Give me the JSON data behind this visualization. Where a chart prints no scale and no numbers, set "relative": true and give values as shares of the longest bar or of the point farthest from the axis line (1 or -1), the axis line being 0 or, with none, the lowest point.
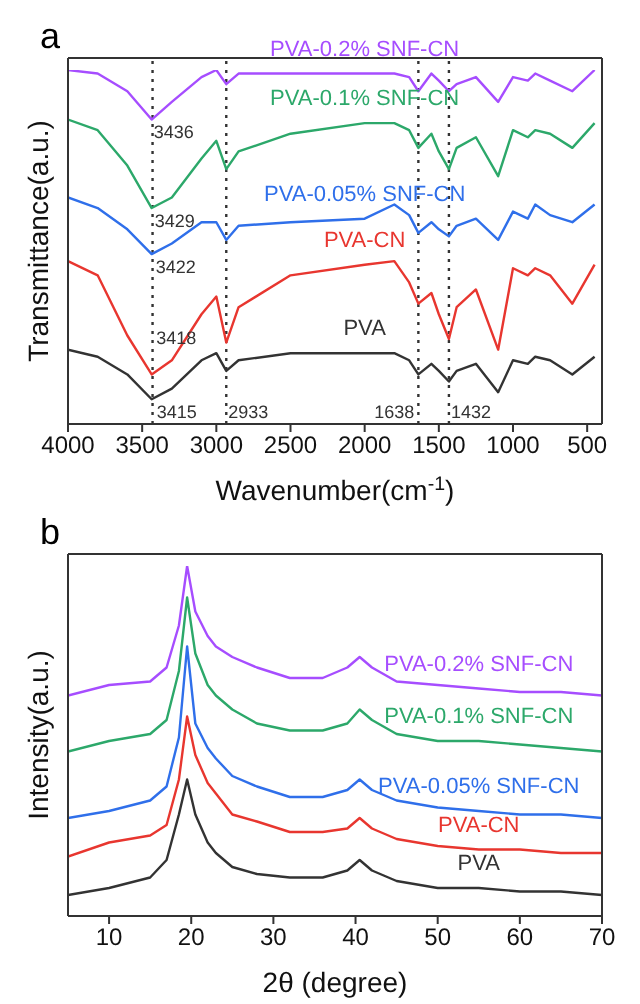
{
  "chart_data": [
    {
      "type": "line",
      "title": "a",
      "xlabel": "Wavenumber(cm$^{-1}$)",
      "ylabel": "Transmittance(a.u.)",
      "relative": true,
      "legend": false,
      "grid": false,
      "xlim": [
        4000,
        400
      ],
      "xticks": [
        4000,
        3500,
        3000,
        2500,
        2000,
        1500,
        1000,
        500
      ],
      "x": [
        4000,
        3800,
        3600,
        3436,
        3300,
        3100,
        3000,
        2933,
        2850,
        2500,
        2000,
        1800,
        1700,
        1638,
        1550,
        1500,
        1432,
        1380,
        1250,
        1100,
        1000,
        900,
        850,
        750,
        600,
        450
      ],
      "series": [
        {
          "name": "PVA-0.2% SNF-CN",
          "color": "#a64dff",
          "values": [
            1.0,
            0.99,
            0.94,
            0.86,
            0.91,
            0.98,
            1.0,
            0.96,
            0.99,
            0.99,
            0.99,
            0.99,
            0.98,
            0.94,
            0.99,
            0.97,
            0.94,
            0.96,
            0.98,
            0.91,
            0.98,
            0.97,
            0.99,
            0.97,
            0.94,
            1.0
          ]
        },
        {
          "name": "PVA-0.1% SNF-CN",
          "color": "#2ca86a",
          "values": [
            0.86,
            0.83,
            0.73,
            0.61,
            0.64,
            0.75,
            0.8,
            0.72,
            0.77,
            0.82,
            0.85,
            0.85,
            0.83,
            0.78,
            0.82,
            0.77,
            0.72,
            0.78,
            0.81,
            0.7,
            0.83,
            0.81,
            0.83,
            0.82,
            0.78,
            0.85
          ]
        },
        {
          "name": "PVA-0.05% SNF-CN",
          "color": "#2f6fea",
          "values": [
            0.64,
            0.61,
            0.55,
            0.48,
            0.51,
            0.57,
            0.57,
            0.52,
            0.56,
            0.57,
            0.58,
            0.62,
            0.59,
            0.54,
            0.57,
            0.55,
            0.53,
            0.56,
            0.58,
            0.52,
            0.6,
            0.58,
            0.62,
            0.59,
            0.57,
            0.62
          ]
        },
        {
          "name": "PVA-CN",
          "color": "#e8362f",
          "values": [
            0.46,
            0.42,
            0.25,
            0.14,
            0.18,
            0.31,
            0.36,
            0.23,
            0.33,
            0.42,
            0.45,
            0.46,
            0.4,
            0.34,
            0.37,
            0.31,
            0.24,
            0.33,
            0.38,
            0.21,
            0.44,
            0.42,
            0.44,
            0.42,
            0.34,
            0.45
          ]
        },
        {
          "name": "PVA",
          "color": "#333333",
          "values": [
            0.21,
            0.19,
            0.14,
            0.07,
            0.1,
            0.18,
            0.2,
            0.15,
            0.18,
            0.2,
            0.2,
            0.2,
            0.18,
            0.14,
            0.17,
            0.15,
            0.12,
            0.15,
            0.17,
            0.09,
            0.18,
            0.17,
            0.19,
            0.18,
            0.14,
            0.19
          ]
        }
      ],
      "ref_lines": [
        {
          "axis": "x",
          "value": 3430,
          "color": "#333333",
          "line_style": "dotted"
        },
        {
          "axis": "x",
          "value": 2933,
          "color": "#333333",
          "line_style": "dotted"
        },
        {
          "axis": "x",
          "value": 1638,
          "color": "#333333",
          "line_style": "dotted"
        },
        {
          "axis": "x",
          "value": 1432,
          "color": "#333333",
          "line_style": "dotted"
        }
      ],
      "annotations": [
        {
          "text": "3436",
          "x": 3436,
          "y": 0.82
        },
        {
          "text": "3429",
          "x": 3429,
          "y": 0.57
        },
        {
          "text": "3422",
          "x": 3422,
          "y": 0.44
        },
        {
          "text": "3418",
          "x": 3418,
          "y": 0.24
        },
        {
          "text": "3415",
          "x": 3415,
          "y": 0.03
        },
        {
          "text": "2933",
          "x": 2933,
          "y": 0.03
        },
        {
          "text": "1638",
          "x": 1638,
          "y": 0.03
        },
        {
          "text": "1432",
          "x": 1432,
          "y": 0.03
        }
      ]
    },
    {
      "type": "line",
      "title": "b",
      "xlabel": "2θ (degree)",
      "ylabel": "Intensity(a.u.)",
      "relative": true,
      "legend": false,
      "grid": false,
      "xlim": [
        5,
        70
      ],
      "xticks": [
        10,
        20,
        30,
        40,
        50,
        60,
        70
      ],
      "x": [
        5,
        10,
        15,
        17,
        18.5,
        19.5,
        20.5,
        22,
        23,
        25,
        28,
        32,
        36,
        39,
        40.5,
        42,
        45,
        50,
        55,
        60,
        65,
        70
      ],
      "series": [
        {
          "name": "PVA-0.2% SNF-CN",
          "color": "#a64dff",
          "values": [
            0.63,
            0.66,
            0.67,
            0.71,
            0.83,
            1.0,
            0.87,
            0.8,
            0.77,
            0.74,
            0.71,
            0.68,
            0.68,
            0.71,
            0.74,
            0.71,
            0.67,
            0.66,
            0.65,
            0.64,
            0.64,
            0.63
          ]
        },
        {
          "name": "PVA-0.1% SNF-CN",
          "color": "#2ca86a",
          "values": [
            0.47,
            0.5,
            0.52,
            0.56,
            0.7,
            0.91,
            0.75,
            0.66,
            0.63,
            0.59,
            0.55,
            0.53,
            0.53,
            0.55,
            0.59,
            0.56,
            0.52,
            0.5,
            0.5,
            0.49,
            0.48,
            0.47
          ]
        },
        {
          "name": "PVA-0.05% SNF-CN",
          "color": "#2f6fea",
          "values": [
            0.28,
            0.3,
            0.33,
            0.37,
            0.51,
            0.77,
            0.55,
            0.48,
            0.45,
            0.4,
            0.37,
            0.34,
            0.34,
            0.36,
            0.39,
            0.36,
            0.33,
            0.31,
            0.3,
            0.29,
            0.29,
            0.28
          ]
        },
        {
          "name": "PVA-CN",
          "color": "#e8362f",
          "values": [
            0.17,
            0.21,
            0.23,
            0.26,
            0.39,
            0.57,
            0.46,
            0.38,
            0.35,
            0.29,
            0.27,
            0.24,
            0.24,
            0.25,
            0.28,
            0.25,
            0.22,
            0.2,
            0.19,
            0.19,
            0.18,
            0.18
          ]
        },
        {
          "name": "PVA",
          "color": "#333333",
          "values": [
            0.06,
            0.08,
            0.11,
            0.16,
            0.29,
            0.39,
            0.29,
            0.21,
            0.18,
            0.14,
            0.12,
            0.11,
            0.11,
            0.13,
            0.16,
            0.13,
            0.1,
            0.08,
            0.08,
            0.07,
            0.07,
            0.06
          ]
        }
      ]
    }
  ]
}
